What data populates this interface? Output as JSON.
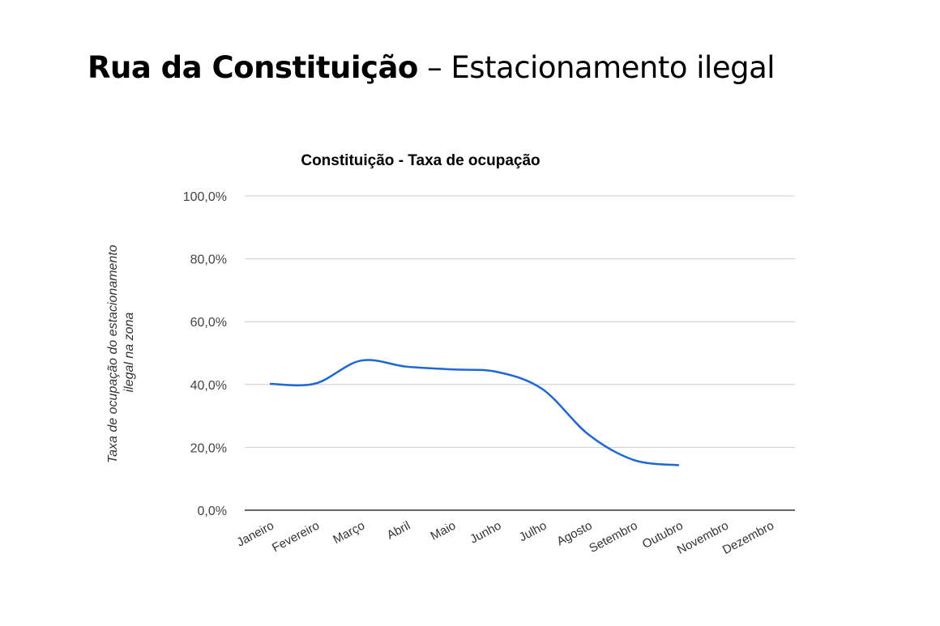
{
  "slide": {
    "title_bold": "Rua da Constituição",
    "title_rest": " – Estacionamento ilegal"
  },
  "chart_data": {
    "type": "line",
    "title": "Constituição - Taxa de ocupação",
    "xlabel": "",
    "ylabel": "Taxa de ocupação do estacionamento ilegal na zona",
    "ylabel_lines": [
      "Taxa de ocupação do estacionamento",
      "ilegal na zona"
    ],
    "categories": [
      "Janeiro",
      "Fevereiro",
      "Março",
      "Abril",
      "Maio",
      "Junho",
      "Julho",
      "Agosto",
      "Setembro",
      "Outubro",
      "Novembro",
      "Dezembro"
    ],
    "series": [
      {
        "name": "Taxa de ocupação",
        "values": [
          40.2,
          40.3,
          47.6,
          45.7,
          44.8,
          44.0,
          38.5,
          24.2,
          16.0,
          14.3,
          null,
          null
        ],
        "color": "#1f66d6"
      }
    ],
    "ylim": [
      0,
      100
    ],
    "yticks": [
      0,
      20,
      40,
      60,
      80,
      100
    ],
    "ytick_labels": [
      "0,0%",
      "20,0%",
      "40,0%",
      "60,0%",
      "80,0%",
      "100,0%"
    ],
    "grid": true,
    "smooth": true
  }
}
